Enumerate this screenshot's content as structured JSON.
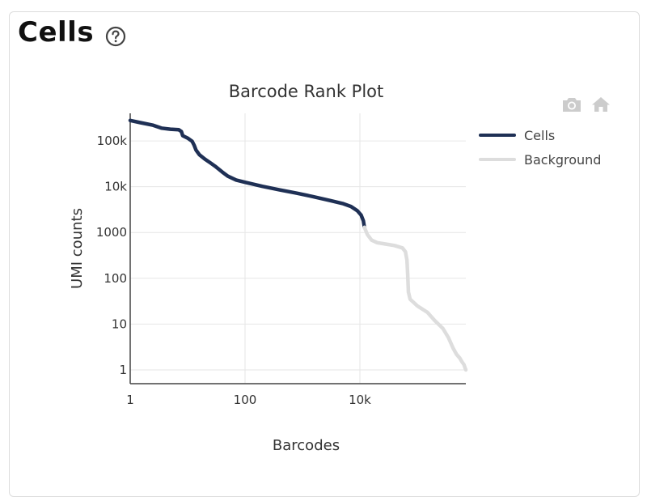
{
  "card": {
    "title": "Cells"
  },
  "icons": {
    "help": "help-circle-icon",
    "camera": "camera-icon",
    "home": "home-icon"
  },
  "colors": {
    "cells": "#1f3055",
    "background": "#dddddd",
    "grid": "#e6e6e6",
    "axis": "#444444",
    "modebar_icon": "#cccccc"
  },
  "chart_data": {
    "type": "line",
    "title": "Barcode Rank Plot",
    "xlabel": "Barcodes",
    "ylabel": "UMI counts",
    "x_scale": "log",
    "y_scale": "log",
    "xlim": [
      1,
      700000
    ],
    "ylim": [
      0.5,
      400000
    ],
    "x_ticks": [
      {
        "value": 1,
        "label": "1"
      },
      {
        "value": 100,
        "label": "100"
      },
      {
        "value": 10000,
        "label": "10k"
      }
    ],
    "y_ticks": [
      {
        "value": 1,
        "label": "1"
      },
      {
        "value": 10,
        "label": "10"
      },
      {
        "value": 100,
        "label": "100"
      },
      {
        "value": 1000,
        "label": "1000"
      },
      {
        "value": 10000,
        "label": "10k"
      },
      {
        "value": 100000,
        "label": "100k"
      }
    ],
    "grid": true,
    "legend_position": "right",
    "series": [
      {
        "name": "Cells",
        "color": "#1f3055",
        "points": [
          [
            1,
            280000
          ],
          [
            1.5,
            250000
          ],
          [
            2.5,
            220000
          ],
          [
            3.5,
            190000
          ],
          [
            5,
            180000
          ],
          [
            7,
            175000
          ],
          [
            7.8,
            160000
          ],
          [
            8.2,
            130000
          ],
          [
            10,
            115000
          ],
          [
            12,
            98000
          ],
          [
            13,
            80000
          ],
          [
            14,
            63000
          ],
          [
            16,
            50000
          ],
          [
            20,
            40000
          ],
          [
            25,
            33000
          ],
          [
            30,
            28000
          ],
          [
            40,
            21000
          ],
          [
            50,
            17000
          ],
          [
            70,
            14000
          ],
          [
            100,
            12500
          ],
          [
            200,
            10200
          ],
          [
            400,
            8500
          ],
          [
            800,
            7200
          ],
          [
            1500,
            6100
          ],
          [
            3000,
            5000
          ],
          [
            5000,
            4300
          ],
          [
            7000,
            3700
          ],
          [
            9000,
            3000
          ],
          [
            10500,
            2400
          ],
          [
            11500,
            1800
          ],
          [
            12000,
            1300
          ]
        ]
      },
      {
        "name": "Background",
        "color": "#dddddd",
        "points": [
          [
            12000,
            1300
          ],
          [
            13500,
            900
          ],
          [
            16000,
            680
          ],
          [
            20000,
            600
          ],
          [
            28000,
            560
          ],
          [
            40000,
            520
          ],
          [
            55000,
            460
          ],
          [
            62000,
            380
          ],
          [
            66000,
            250
          ],
          [
            68000,
            120
          ],
          [
            70000,
            50
          ],
          [
            75000,
            35
          ],
          [
            100000,
            25
          ],
          [
            150000,
            18
          ],
          [
            200000,
            12
          ],
          [
            280000,
            8
          ],
          [
            350000,
            5
          ],
          [
            420000,
            3
          ],
          [
            480000,
            2.2
          ],
          [
            550000,
            1.8
          ],
          [
            600000,
            1.5
          ],
          [
            650000,
            1.3
          ],
          [
            680000,
            1.1
          ],
          [
            700000,
            1
          ]
        ]
      }
    ]
  }
}
